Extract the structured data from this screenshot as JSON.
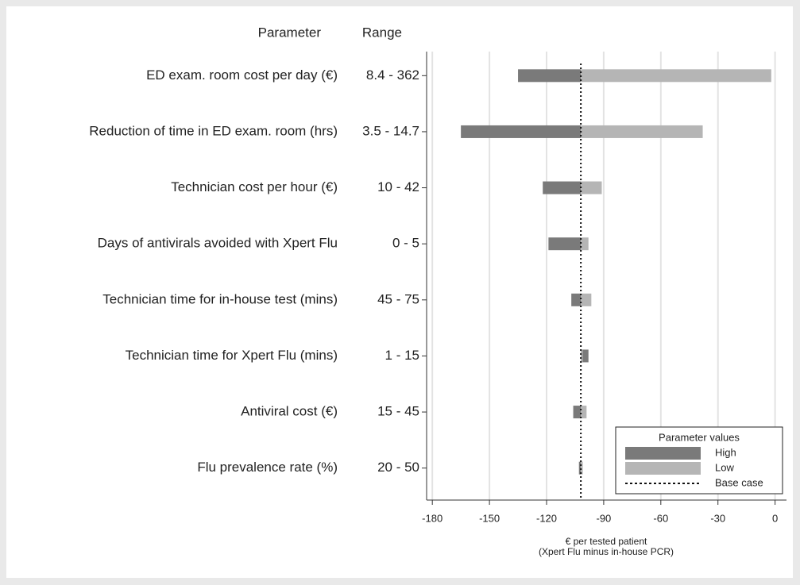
{
  "chart_data": {
    "type": "tornado",
    "parameter_header": "Parameter",
    "range_header": "Range",
    "categories": [
      "ED exam. room cost per day (€)",
      "Reduction of time in ED exam. room (hrs)",
      "Technician cost per hour (€)",
      "Days of antivirals avoided with Xpert Flu",
      "Technician time for in-house test (mins)",
      "Technician time for Xpert Flu (mins)",
      "Antiviral cost (€)",
      "Flu prevalence rate (%)"
    ],
    "ranges": [
      "8.4 - 362",
      "3.5 - 14.7",
      "10 - 42",
      "0 - 5",
      "45 - 75",
      "1 - 15",
      "15 - 45",
      "20 - 50"
    ],
    "series": [
      {
        "name": "High",
        "color": "#7a7a7a",
        "values": [
          -135,
          -165,
          -122,
          -119,
          -107,
          -98,
          -106,
          -103
        ]
      },
      {
        "name": "Low",
        "color": "#b5b5b5",
        "values": [
          -2,
          -38,
          -91,
          -98,
          -96.5,
          -101,
          -99,
          -101
        ]
      }
    ],
    "base_case": {
      "name": "Base case",
      "value": -102
    },
    "xlabel": "€ per tested patient",
    "xlabel_note": "(Xpert Flu minus in-house PCR)",
    "xlim": [
      -183,
      6
    ],
    "xticks": [
      -180,
      -150,
      -120,
      -90,
      -60,
      -30,
      0
    ],
    "grid": true,
    "legend_title": "Parameter values",
    "legend_position": "bottom-right"
  }
}
